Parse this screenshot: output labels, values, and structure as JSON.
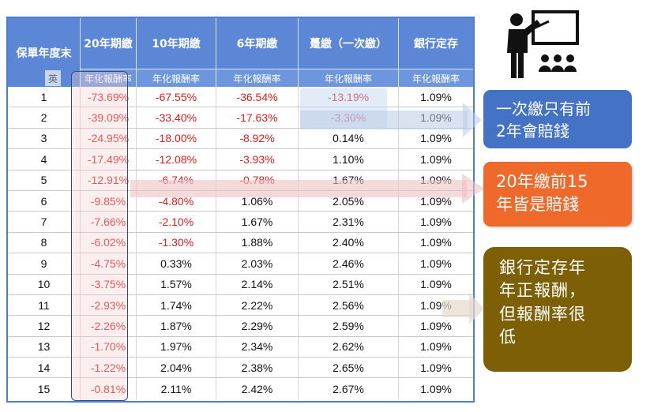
{
  "table": {
    "year_header": "保單年度末",
    "ime_indicator": "英",
    "columns": [
      {
        "title": "20年期繳",
        "sub": "年化報酬率"
      },
      {
        "title": "10年期繳",
        "sub": "年化報酬率"
      },
      {
        "title": "6年期繳",
        "sub": "年化報酬率"
      },
      {
        "title": "躉繳（一次繳）",
        "sub": "年化報酬率"
      },
      {
        "title": "銀行定存",
        "sub": "年化報酬率"
      }
    ],
    "rows": [
      [
        "1",
        "-73.69%",
        "-67.55%",
        "-36.54%",
        "-13.19%",
        "1.09%"
      ],
      [
        "2",
        "-39.09%",
        "-33.40%",
        "-17.63%",
        "-3.30%",
        "1.09%"
      ],
      [
        "3",
        "-24.95%",
        "-18.00%",
        "-8.92%",
        "0.14%",
        "1.09%"
      ],
      [
        "4",
        "-17.49%",
        "-12.08%",
        "-3.93%",
        "1.10%",
        "1.09%"
      ],
      [
        "5",
        "-12.91%",
        "-6.74%",
        "-0.78%",
        "1.67%",
        "1.09%"
      ],
      [
        "6",
        "-9.85%",
        "-4.80%",
        "1.06%",
        "2.05%",
        "1.09%"
      ],
      [
        "7",
        "-7.66%",
        "-2.10%",
        "1.67%",
        "2.31%",
        "1.09%"
      ],
      [
        "8",
        "-6.02%",
        "-1.30%",
        "1.88%",
        "2.40%",
        "1.09%"
      ],
      [
        "9",
        "-4.75%",
        "0.33%",
        "2.03%",
        "2.46%",
        "1.09%"
      ],
      [
        "10",
        "-3.75%",
        "1.57%",
        "2.14%",
        "2.51%",
        "1.09%"
      ],
      [
        "11",
        "-2.93%",
        "1.74%",
        "2.22%",
        "2.56%",
        "1.09%"
      ],
      [
        "12",
        "-2.26%",
        "1.87%",
        "2.29%",
        "2.59%",
        "1.09%"
      ],
      [
        "13",
        "-1.70%",
        "1.97%",
        "2.34%",
        "2.62%",
        "1.09%"
      ],
      [
        "14",
        "-1.22%",
        "2.04%",
        "2.38%",
        "2.65%",
        "1.09%"
      ],
      [
        "15",
        "-0.81%",
        "2.11%",
        "2.42%",
        "2.67%",
        "1.09%"
      ]
    ]
  },
  "notes": {
    "lump_sum": {
      "line1": "一次繳只有前",
      "line2": "2年會賠錢"
    },
    "twenty_year": {
      "line1": "20年繳前15",
      "line2": "年皆是賠錢"
    },
    "bank": {
      "line1": "銀行定存年",
      "line2": "年正報酬，",
      "line3": "但報酬率很",
      "line4": "低"
    }
  },
  "icons": {
    "presentation": "teacher-presentation-icon"
  },
  "colors": {
    "header_blue": "#5b87d6",
    "negative_red": "#e21b1b",
    "note_blue": "#4472c4",
    "note_orange": "#ef6a2a",
    "note_brown": "#7d5f05"
  }
}
